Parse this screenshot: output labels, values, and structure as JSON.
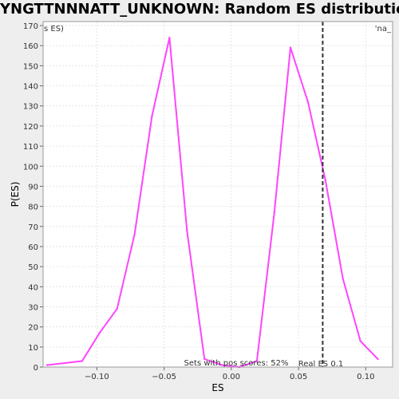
{
  "chart_data": {
    "type": "line",
    "title": "YNGTTNNNATT_UNKNOWN: Random ES distribution",
    "xlabel": "ES",
    "ylabel": "P(ES)",
    "xlim": [
      -0.14,
      0.12
    ],
    "ylim": [
      0,
      172
    ],
    "x_ticks": [
      -0.1,
      -0.05,
      0.0,
      0.05,
      0.1
    ],
    "x_tick_labels": [
      "−0.10",
      "−0.05",
      "0.00",
      "0.05",
      "0.10"
    ],
    "y_ticks": [
      0,
      10,
      20,
      30,
      40,
      50,
      60,
      70,
      80,
      90,
      100,
      110,
      120,
      130,
      140,
      150,
      160,
      170
    ],
    "grid": true,
    "series": [
      {
        "color": "#ff44ff",
        "x": [
          -0.137,
          -0.124,
          -0.111,
          -0.098,
          -0.085,
          -0.072,
          -0.059,
          -0.046,
          -0.033,
          -0.02,
          -0.007,
          0.006,
          0.019,
          0.032,
          0.044,
          0.057,
          0.07,
          0.083,
          0.096,
          0.109
        ],
        "y": [
          1,
          2,
          3,
          17,
          29,
          66,
          125,
          164,
          68,
          4,
          1,
          0,
          3,
          77,
          159,
          132,
          93,
          44,
          13,
          4
        ]
      }
    ],
    "real_es_line": {
      "x": 0.068,
      "label": "Real ES 0.1"
    },
    "annotations": {
      "pos_scores": "Sets with pos scores: 52%",
      "top_left_legend": "s ES)",
      "top_right_legend": "'na_"
    },
    "colors": {
      "line": "#ff44ff",
      "left_legend": "#dd2222",
      "right_legend": "#2222cc",
      "plot_bg": "#ffffff",
      "grid": "#e6e6e6"
    }
  }
}
